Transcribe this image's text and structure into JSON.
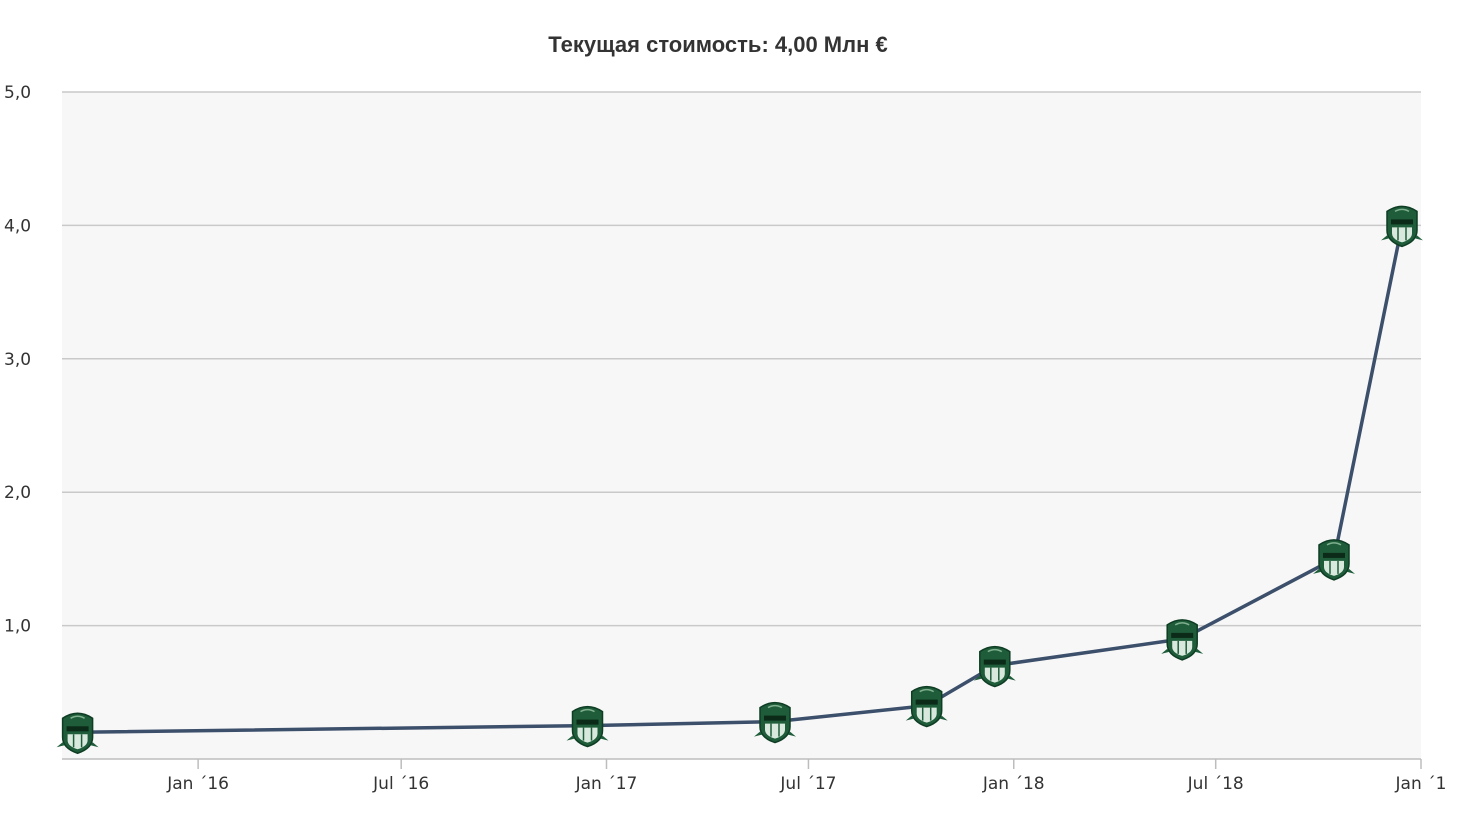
{
  "chart_data": {
    "type": "line",
    "title": "Текущая стоимость: 4,00 Млн €",
    "xlabel": "",
    "ylabel": "",
    "ylim": [
      0,
      5
    ],
    "xlim": [
      "2015-09-01",
      "2019-01-01"
    ],
    "y_ticks": [
      "1,0",
      "2,0",
      "3,0",
      "4,0",
      "5,0"
    ],
    "x_ticks": [
      "Jan ´16",
      "Jul ´16",
      "Jan ´17",
      "Jul ´17",
      "Jan ´18",
      "Jul ´18",
      "Jan ´1"
    ],
    "grid": true,
    "legend": "none",
    "colors": {
      "line": "#3c4f6b",
      "marker": "#1e5c3a",
      "plot_bg": "#f7f7f7",
      "grid": "#c9c9c9"
    },
    "marker_icon": "club-crest-icon",
    "series": [
      {
        "x": [
          "2015-09-15",
          "2016-12-15",
          "2017-06-01",
          "2017-10-15",
          "2017-12-15",
          "2018-06-01",
          "2018-10-15",
          "2018-12-15"
        ],
        "values": [
          0.2,
          0.25,
          0.28,
          0.4,
          0.7,
          0.9,
          1.5,
          4.0
        ]
      }
    ]
  }
}
